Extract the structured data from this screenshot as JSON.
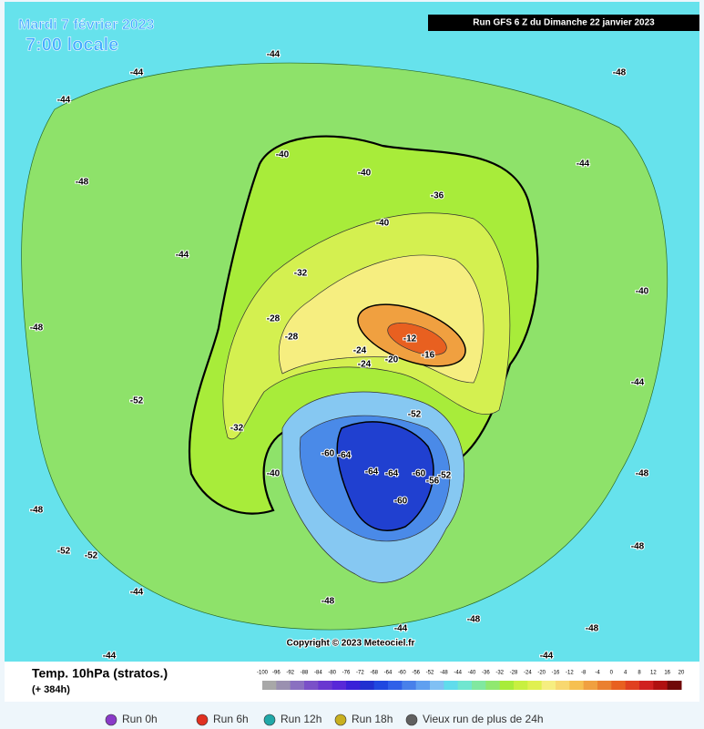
{
  "header": {
    "date": "Mardi 7 février 2023",
    "time": "7:00 locale",
    "run": "Run GFS 6 Z du Dimanche 22 janvier 2023",
    "copyright": "Copyright © 2023 Meteociel.fr"
  },
  "map_labels": [
    "-44",
    "-44",
    "-44",
    "-48",
    "-48",
    "-44",
    "-44",
    "-40",
    "-40",
    "-40",
    "-40",
    "-36",
    "-32",
    "-32",
    "-28",
    "-28",
    "-24",
    "-20",
    "-12",
    "-16",
    "-24",
    "-52",
    "-60",
    "-64",
    "-64",
    "-64",
    "-60",
    "-60",
    "-56",
    "-52",
    "-48",
    "-48",
    "-44",
    "-44",
    "-48",
    "-52",
    "-52",
    "-48",
    "-44",
    "-52",
    "-48",
    "-48",
    "-44",
    "-40",
    "-44",
    "-48"
  ],
  "legend": {
    "title": "Temp. 10hPa (stratos.)",
    "lead": "(+ 384h)",
    "scale": [
      -100,
      -96,
      -92,
      -88,
      -84,
      -80,
      -76,
      -72,
      -68,
      -64,
      -60,
      -56,
      -52,
      -48,
      -44,
      -40,
      -36,
      -32,
      -28,
      -24,
      -20,
      -16,
      -12,
      -8,
      -4,
      0,
      4,
      8,
      12,
      16,
      20
    ]
  },
  "runs": [
    "Run 0h",
    "Run 6h",
    "Run 12h",
    "Run 18h",
    "Vieux run de plus de 24h"
  ]
}
